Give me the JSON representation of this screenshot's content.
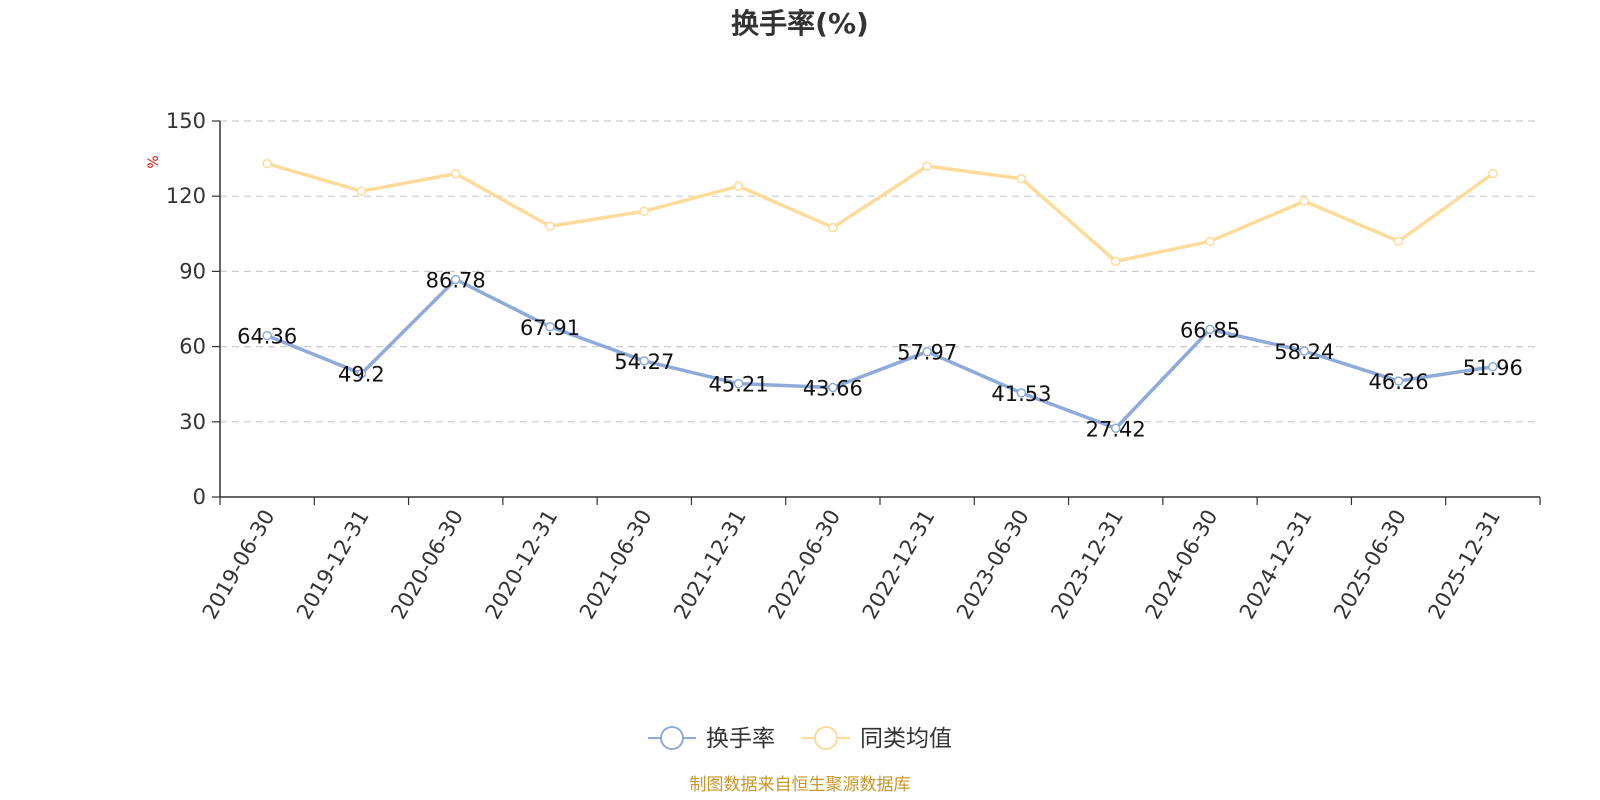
{
  "chart_data": {
    "type": "line",
    "title": "换手率(%)",
    "ylabel": "%",
    "ylim": [
      0,
      150
    ],
    "yticks": [
      0,
      30,
      60,
      90,
      120,
      150
    ],
    "grid": true,
    "legend_position": "bottom",
    "categories": [
      "2019-06-30",
      "2019-12-31",
      "2020-06-30",
      "2020-12-31",
      "2021-06-30",
      "2021-12-31",
      "2022-06-30",
      "2022-12-31",
      "2023-06-30",
      "2023-12-31",
      "2024-06-30",
      "2024-12-31",
      "2025-06-30",
      "2025-12-31"
    ],
    "series": [
      {
        "name": "换手率",
        "color": "#8eaadb",
        "values": [
          64.36,
          49.2,
          86.78,
          67.91,
          54.27,
          45.21,
          43.66,
          57.97,
          41.53,
          27.42,
          66.85,
          58.24,
          46.26,
          51.96
        ],
        "labels": [
          "64.36",
          "49.2",
          "86.78",
          "67.91",
          "54.27",
          "45.21",
          "43.66",
          "57.97",
          "41.53",
          "27.42",
          "66.85",
          "58.24",
          "46.26",
          "51.96"
        ]
      },
      {
        "name": "同类均值",
        "color": "#fddb9a",
        "values": [
          133,
          122,
          129,
          108,
          114,
          124,
          107.5,
          132,
          127,
          94,
          102,
          118,
          102,
          129
        ]
      }
    ]
  },
  "colors": {
    "axis": "#333333",
    "grid": "#cccccc",
    "unit": "#e01010",
    "source": "#c8962a"
  },
  "footer": {
    "source_text": "制图数据来自恒生聚源数据库"
  }
}
